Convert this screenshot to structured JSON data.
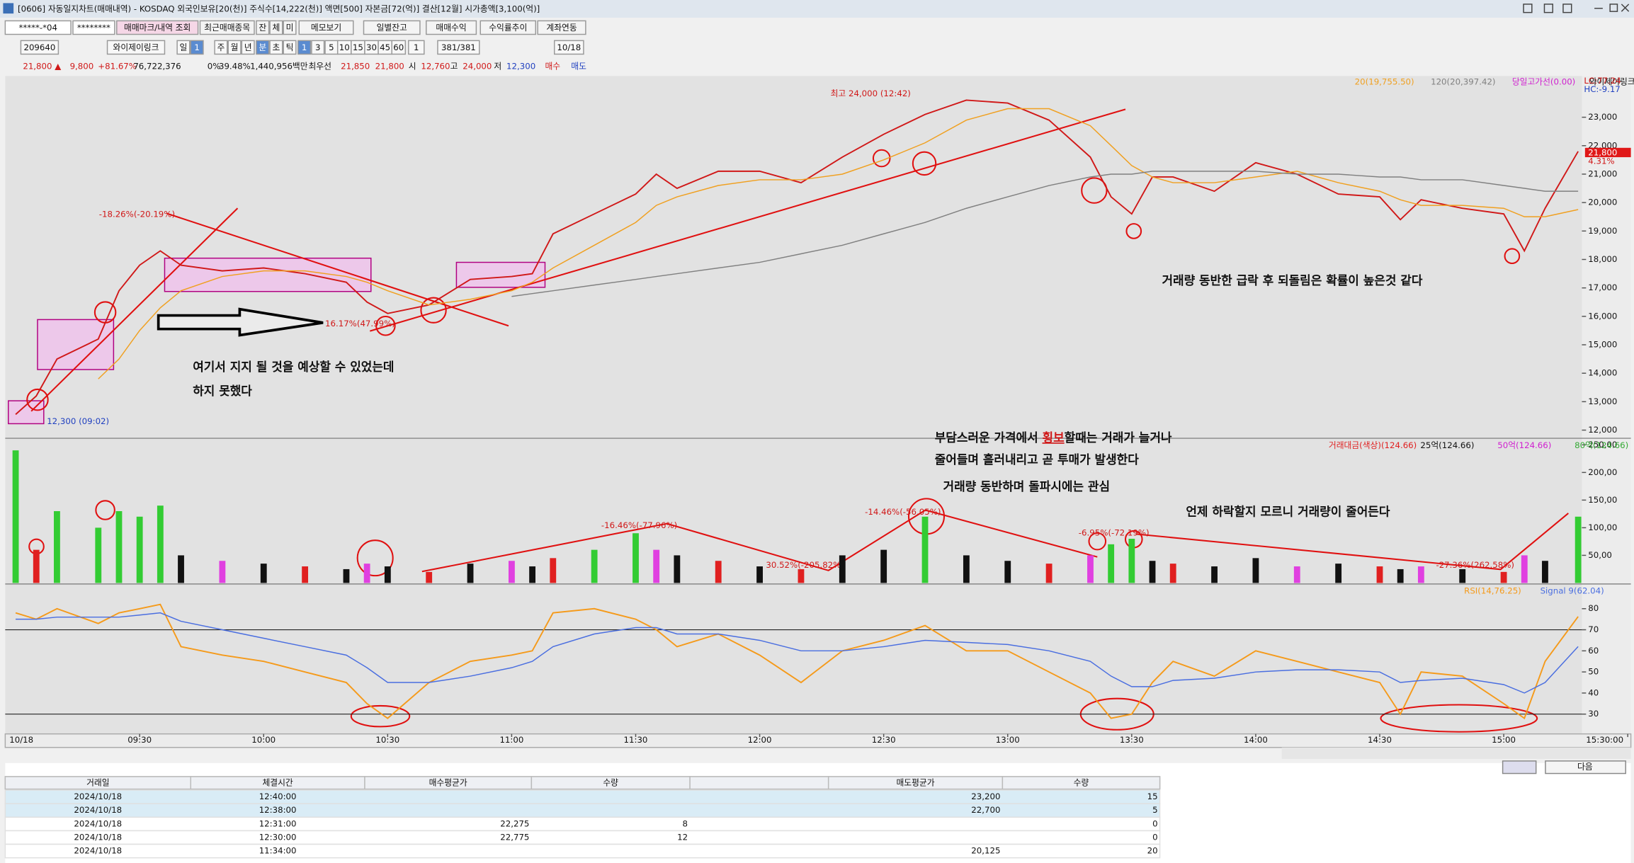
{
  "window_title": "[0606] 자동일지차트(매매내역) - KOSDAQ 외국인보유[20(천)] 주식수[14,222(천)] 액면[500] 자본금[72(억)] 결산[12월] 시가총액[3,100(억)]",
  "toolbar1": [
    "*****-*04",
    "********",
    "매매마크/내역 조회",
    "최근매매종목",
    "잔",
    "체",
    "미",
    "메모보기",
    "일별잔고",
    "매매수익",
    "수익률추이",
    "계좌연동"
  ],
  "toolbar2": [
    "209640",
    "와이제이링크",
    "일",
    "1",
    "주",
    "월",
    "년",
    "분",
    "초",
    "틱",
    "1",
    "3",
    "5",
    "10",
    "15",
    "30",
    "45",
    "60",
    "1",
    "381/381",
    "10/18"
  ],
  "quote": [
    "21,800 ▲",
    "9,800",
    "+81.67%",
    "76,722,376",
    "0%",
    "39.48%",
    "1,440,956백만",
    "최우선",
    "21,850",
    "21,800",
    "시",
    "12,760",
    "고",
    "24,000",
    "저",
    "12,300",
    "매수",
    "매도"
  ],
  "annotations": [
    "최고 24,000 (12:42)",
    "-18.26%(-20.19%)",
    "16.17%(47.99%)",
    "12,300 (09:02)",
    "여기서 지지 될 것을 예상할 수 있었는데",
    "하지 못했다",
    "거래량 동반한 급락 후 되돌림은 확률이 높은것 같다",
    "부담스러운 가격에서",
    "횡보",
    "할때는 거래가 늘거나",
    "줄어들며 흘러내리고 곧 투매가 발생한다",
    "거래량 동반하며 돌파시에는 관심",
    "언제 하락할지 모르니 거래량이 줄어든다",
    "-16.46%(-77.96%)",
    "30.52%(-205.82%)",
    "-14.46%(-56.05%)",
    "-6.95%(-72.19%)",
    "-27.36%(262.58%)"
  ],
  "chart_data": [
    {
      "type": "line",
      "x": [
        "09:00",
        "09:05",
        "09:10",
        "09:20",
        "09:25",
        "09:30",
        "09:35",
        "09:40",
        "09:50",
        "10:00",
        "10:10",
        "10:20",
        "10:25",
        "10:30",
        "10:40",
        "10:50",
        "11:00",
        "11:05",
        "11:10",
        "11:20",
        "11:30",
        "11:35",
        "11:40",
        "11:50",
        "12:00",
        "12:10",
        "12:20",
        "12:30",
        "12:40",
        "12:50",
        "13:00",
        "13:10",
        "13:20",
        "13:25",
        "13:30",
        "13:35",
        "13:40",
        "13:50",
        "14:00",
        "14:10",
        "14:20",
        "14:30",
        "14:35",
        "14:40",
        "14:50",
        "15:00",
        "15:05",
        "15:10",
        "15:18"
      ],
      "series": [
        {
          "color": "#d01818",
          "values": [
            12550,
            13200,
            14500,
            15200,
            16900,
            17800,
            18300,
            17800,
            17600,
            17700,
            17500,
            17200,
            16500,
            16100,
            16400,
            17300,
            17400,
            17500,
            18900,
            19600,
            20300,
            21000,
            20500,
            21100,
            21100,
            20700,
            21600,
            22400,
            23100,
            23600,
            23500,
            22900,
            21600,
            20200,
            19600,
            20900,
            20900,
            20400,
            21400,
            21000,
            20300,
            20200,
            19400,
            20100,
            19800,
            19600,
            18300,
            19800,
            21800
          ]
        },
        {
          "name": "20(19,755.50)",
          "color": "#f0a020",
          "values": [
            null,
            null,
            null,
            13800,
            14500,
            15500,
            16300,
            16900,
            17400,
            17600,
            17600,
            17400,
            17200,
            16900,
            16400,
            16600,
            16900,
            17200,
            17700,
            18500,
            19300,
            19900,
            20200,
            20600,
            20800,
            20800,
            21000,
            21500,
            22100,
            22900,
            23300,
            23300,
            22700,
            22000,
            21300,
            20900,
            20700,
            20700,
            20900,
            21100,
            20700,
            20400,
            20100,
            19900,
            19900,
            19800,
            19500,
            19500,
            19755.5
          ]
        },
        {
          "name": "120(20,397.42)",
          "color": "#808080",
          "values": [
            null,
            null,
            null,
            null,
            null,
            null,
            null,
            null,
            null,
            null,
            null,
            null,
            null,
            null,
            null,
            null,
            16700,
            16800,
            16900,
            17100,
            17300,
            17400,
            17500,
            17700,
            17900,
            18200,
            18500,
            18900,
            19300,
            19800,
            20200,
            20600,
            20900,
            21000,
            21000,
            21100,
            21100,
            21100,
            21100,
            21000,
            21000,
            20900,
            20900,
            20800,
            20800,
            20600,
            20500,
            20400,
            20397.42
          ]
        }
      ],
      "extras": [
        "당일고가선(0.00)",
        "와이제이링크",
        "LC:77.24",
        "HC:-9.17",
        "21,800",
        "4.31%"
      ],
      "ylim": [
        11750,
        24450
      ],
      "yticks": [
        {
          "value": 12000,
          "label": "12,000"
        },
        {
          "value": 13000,
          "label": "13,000"
        },
        {
          "value": 14000,
          "label": "14,000"
        },
        {
          "value": 15000,
          "label": "15,000"
        },
        {
          "value": 16000,
          "label": "16,000"
        },
        {
          "value": 17000,
          "label": "17,000"
        },
        {
          "value": 18000,
          "label": "18,000"
        },
        {
          "value": 19000,
          "label": "19,000"
        },
        {
          "value": 20000,
          "label": "20,000"
        },
        {
          "value": 21000,
          "label": "21,000"
        },
        {
          "value": 22000,
          "label": "22,000"
        },
        {
          "value": 23000,
          "label": "23,000"
        }
      ]
    },
    {
      "type": "bar",
      "x": [
        "09:00",
        "09:05",
        "09:10",
        "09:20",
        "09:25",
        "09:30",
        "09:35",
        "09:40",
        "09:50",
        "10:00",
        "10:10",
        "10:20",
        "10:25",
        "10:30",
        "10:40",
        "10:50",
        "11:00",
        "11:05",
        "11:10",
        "11:20",
        "11:30",
        "11:35",
        "11:40",
        "11:50",
        "12:00",
        "12:10",
        "12:20",
        "12:30",
        "12:40",
        "12:50",
        "13:00",
        "13:10",
        "13:20",
        "13:25",
        "13:30",
        "13:35",
        "13:40",
        "13:50",
        "14:00",
        "14:10",
        "14:20",
        "14:30",
        "14:35",
        "14:40",
        "14:50",
        "15:00",
        "15:05",
        "15:10",
        "15:18"
      ],
      "series": [
        {
          "name": "거래대금(색상)(124.66)",
          "color": "#e02020",
          "values": [
            240000,
            60000,
            130000,
            100000,
            130000,
            120000,
            140000,
            50000,
            40000,
            35000,
            30000,
            25000,
            35000,
            30000,
            20000,
            35000,
            40000,
            30000,
            45000,
            60000,
            90000,
            60000,
            50000,
            40000,
            30000,
            25000,
            50000,
            60000,
            120000,
            50000,
            40000,
            35000,
            50000,
            70000,
            80000,
            40000,
            35000,
            30000,
            45000,
            30000,
            35000,
            30000,
            25000,
            30000,
            25000,
            20000,
            50000,
            40000,
            120000
          ],
          "colors": [
            "#33cc33",
            "#e02020",
            "#33cc33",
            "#33cc33",
            "#33cc33",
            "#33cc33",
            "#33cc33",
            "#111111",
            "#e040e0",
            "#111111",
            "#e02020",
            "#111111",
            "#e040e0",
            "#111111",
            "#e02020",
            "#111111",
            "#e040e0",
            "#111111",
            "#e02020",
            "#33cc33",
            "#33cc33",
            "#e040e0",
            "#111111",
            "#e02020",
            "#111111",
            "#e02020",
            "#111111",
            "#111111",
            "#33cc33",
            "#111111",
            "#111111",
            "#e02020",
            "#e040e0",
            "#33cc33",
            "#33cc33",
            "#111111",
            "#e02020",
            "#111111",
            "#111111",
            "#e040e0",
            "#111111",
            "#e02020",
            "#111111",
            "#e040e0",
            "#111111",
            "#e02020",
            "#e040e0",
            "#111111",
            "#33cc33"
          ]
        }
      ],
      "extras": [
        "25억(124.66)",
        "50억(124.66)",
        "80억(124.66)"
      ],
      "ylim": [
        0,
        260000
      ],
      "yticks": [
        {
          "value": 50000,
          "label": "50,00"
        },
        {
          "value": 100000,
          "label": "100,00"
        },
        {
          "value": 150000,
          "label": "150,00"
        },
        {
          "value": 200000,
          "label": "200,00"
        },
        {
          "value": 250000,
          "label": "250,00"
        }
      ]
    },
    {
      "type": "line",
      "x": [
        "09:00",
        "09:05",
        "09:10",
        "09:20",
        "09:25",
        "09:30",
        "09:35",
        "09:40",
        "09:50",
        "10:00",
        "10:10",
        "10:20",
        "10:25",
        "10:30",
        "10:40",
        "10:50",
        "11:00",
        "11:05",
        "11:10",
        "11:20",
        "11:30",
        "11:35",
        "11:40",
        "11:50",
        "12:00",
        "12:10",
        "12:20",
        "12:30",
        "12:40",
        "12:50",
        "13:00",
        "13:10",
        "13:20",
        "13:25",
        "13:30",
        "13:35",
        "13:40",
        "13:50",
        "14:00",
        "14:10",
        "14:20",
        "14:30",
        "14:35",
        "14:40",
        "14:50",
        "15:00",
        "15:05",
        "15:10",
        "15:18"
      ],
      "series": [
        {
          "name": "RSI(14,76.25)",
          "color": "#f59a1a",
          "values": [
            78,
            75,
            80,
            73,
            78,
            80,
            82,
            62,
            58,
            55,
            50,
            45,
            35,
            28,
            45,
            55,
            58,
            60,
            78,
            80,
            75,
            70,
            62,
            68,
            58,
            45,
            60,
            65,
            72,
            60,
            60,
            50,
            40,
            28,
            30,
            45,
            55,
            48,
            60,
            55,
            50,
            45,
            30,
            50,
            48,
            35,
            28,
            55,
            76.25
          ]
        },
        {
          "name": "Signal 9(62.04)",
          "color": "#4a6ee0",
          "values": [
            75,
            75,
            76,
            76,
            76,
            77,
            78,
            74,
            70,
            66,
            62,
            58,
            52,
            45,
            45,
            48,
            52,
            55,
            62,
            68,
            71,
            71,
            68,
            68,
            65,
            60,
            60,
            62,
            65,
            64,
            63,
            60,
            55,
            48,
            43,
            43,
            46,
            47,
            50,
            51,
            51,
            50,
            45,
            46,
            47,
            44,
            40,
            45,
            62.04
          ]
        }
      ],
      "levels": [
        70,
        30
      ],
      "ylim": [
        21.6,
        91.2
      ],
      "yticks": [
        30,
        40,
        50,
        60,
        70,
        80
      ],
      "date_label": "10/18",
      "xticks": [
        "09:30",
        "10:00",
        "10:30",
        "11:00",
        "11:30",
        "12:00",
        "12:30",
        "13:00",
        "13:30",
        "14:00",
        "14:30",
        "15:00",
        "15:30:00"
      ]
    }
  ],
  "table": {
    "columns": [
      "거래일",
      "체결시간",
      "매수평균가",
      "수량",
      "매도평균가",
      "수량"
    ],
    "rows": [
      [
        "2024/10/18",
        "12:40:00",
        null,
        null,
        "23,200",
        "15"
      ],
      [
        "2024/10/18",
        "12:38:00",
        null,
        null,
        "22,700",
        "5"
      ],
      [
        "2024/10/18",
        "12:31:00",
        "22,275",
        "8",
        null,
        "0"
      ],
      [
        "2024/10/18",
        "12:30:00",
        "22,775",
        "12",
        null,
        "0"
      ],
      [
        "2024/10/18",
        "11:34:00",
        null,
        null,
        "20,125",
        "20"
      ]
    ]
  },
  "next_button": "다음"
}
